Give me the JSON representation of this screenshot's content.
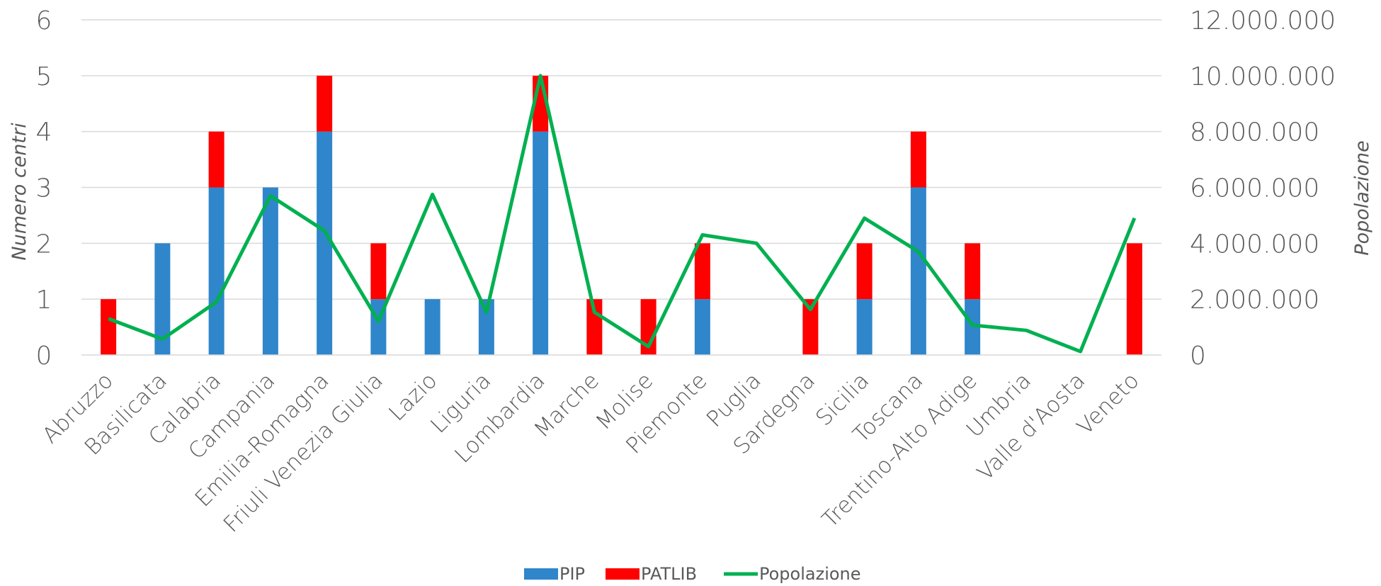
{
  "chart_data": {
    "type": "bar",
    "stacked": true,
    "categories": [
      "Abruzzo",
      "Basilicata",
      "Calabria",
      "Campania",
      "Emilia-Romagna",
      "Friuli Venezia Giulia",
      "Lazio",
      "Liguria",
      "Lombardia",
      "Marche",
      "Molise",
      "Piemonte",
      "Puglia",
      "Sardegna",
      "Sicilia",
      "Toscana",
      "Trentino-Alto Adige",
      "Umbria",
      "Valle d'Aosta",
      "Veneto"
    ],
    "series": [
      {
        "name": "PIP",
        "kind": "bar",
        "axis": "left",
        "color": "#2F86CB",
        "values": [
          0,
          2,
          3,
          3,
          4,
          1,
          1,
          1,
          4,
          0,
          0,
          1,
          0,
          0,
          1,
          3,
          1,
          0,
          0,
          0
        ]
      },
      {
        "name": "PATLIB",
        "kind": "bar",
        "axis": "left",
        "color": "#FF0000",
        "values": [
          1,
          0,
          1,
          0,
          1,
          1,
          0,
          0,
          1,
          1,
          1,
          1,
          0,
          1,
          1,
          1,
          1,
          0,
          0,
          2
        ]
      },
      {
        "name": "Popolazione",
        "kind": "line",
        "axis": "right",
        "color": "#00B050",
        "values": [
          1300000,
          570000,
          1900000,
          5700000,
          4450000,
          1210000,
          5750000,
          1530000,
          10000000,
          1530000,
          300000,
          4300000,
          4000000,
          1630000,
          4900000,
          3700000,
          1070000,
          880000,
          125000,
          4900000
        ]
      }
    ],
    "ylabel": "Numero centri",
    "y2label": "Popolazione",
    "ylim": [
      0,
      6
    ],
    "y2lim": [
      0,
      12000000
    ],
    "yticks": [
      "0",
      "1",
      "2",
      "3",
      "4",
      "5",
      "6"
    ],
    "y2ticks": [
      "0",
      "2.000.000",
      "4.000.000",
      "6.000.000",
      "8.000.000",
      "10.000.000",
      "12.000.000"
    ],
    "grid": true,
    "legend_position": "bottom"
  }
}
